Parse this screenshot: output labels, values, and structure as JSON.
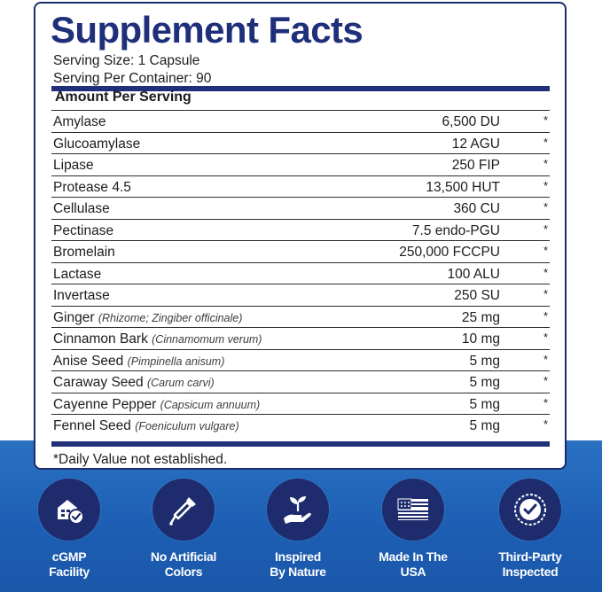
{
  "facts": {
    "title": "Supplement Facts",
    "serving_size": "Serving Size: 1 Capsule",
    "servings_per_container": "Serving Per Container: 90",
    "amount_header": "Amount Per Serving",
    "rows": [
      {
        "name": "Amylase",
        "sci": "",
        "amount": "6,500 DU",
        "dv": "*"
      },
      {
        "name": "Glucoamylase",
        "sci": "",
        "amount": "12 AGU",
        "dv": "*"
      },
      {
        "name": "Lipase",
        "sci": "",
        "amount": "250 FIP",
        "dv": "*"
      },
      {
        "name": "Protease 4.5",
        "sci": "",
        "amount": "13,500 HUT",
        "dv": "*"
      },
      {
        "name": "Cellulase",
        "sci": "",
        "amount": "360 CU",
        "dv": "*"
      },
      {
        "name": "Pectinase",
        "sci": "",
        "amount": "7.5 endo-PGU",
        "dv": "*"
      },
      {
        "name": "Bromelain",
        "sci": "",
        "amount": "250,000 FCCPU",
        "dv": "*"
      },
      {
        "name": "Lactase",
        "sci": "",
        "amount": "100 ALU",
        "dv": "*"
      },
      {
        "name": "Invertase",
        "sci": "",
        "amount": "250 SU",
        "dv": "*"
      },
      {
        "name": "Ginger",
        "sci": "(Rhizome; Zingiber officinale)",
        "amount": "25 mg",
        "dv": "*"
      },
      {
        "name": "Cinnamon Bark",
        "sci": "(Cinnamomum verum)",
        "amount": "10 mg",
        "dv": "*"
      },
      {
        "name": "Anise Seed",
        "sci": "(Pimpinella anisum)",
        "amount": "5 mg",
        "dv": "*"
      },
      {
        "name": "Caraway Seed",
        "sci": "(Carum carvi)",
        "amount": "5 mg",
        "dv": "*"
      },
      {
        "name": "Cayenne Pepper",
        "sci": "(Capsicum annuum)",
        "amount": "5 mg",
        "dv": "*"
      },
      {
        "name": "Fennel Seed",
        "sci": "(Foeniculum vulgare)",
        "amount": "5 mg",
        "dv": "*"
      }
    ],
    "footnote": "*Daily Value not established."
  },
  "badges": [
    {
      "line1": "cGMP",
      "line2": "Facility",
      "icon": "cgmp-facility-icon"
    },
    {
      "line1": "No Artificial",
      "line2": "Colors",
      "icon": "dropper-icon"
    },
    {
      "line1": "Inspired",
      "line2": "By Nature",
      "icon": "hand-plant-icon"
    },
    {
      "line1": "Made In The",
      "line2": "USA",
      "icon": "usa-flag-icon"
    },
    {
      "line1": "Third-Party",
      "line2": "Inspected",
      "icon": "inspected-seal-icon"
    }
  ],
  "colors": {
    "navy": "#1f2f7a",
    "badge_circle": "#1e2c6e",
    "bottom_blue": "#1d5fb4",
    "text": "#1d1d1f"
  }
}
